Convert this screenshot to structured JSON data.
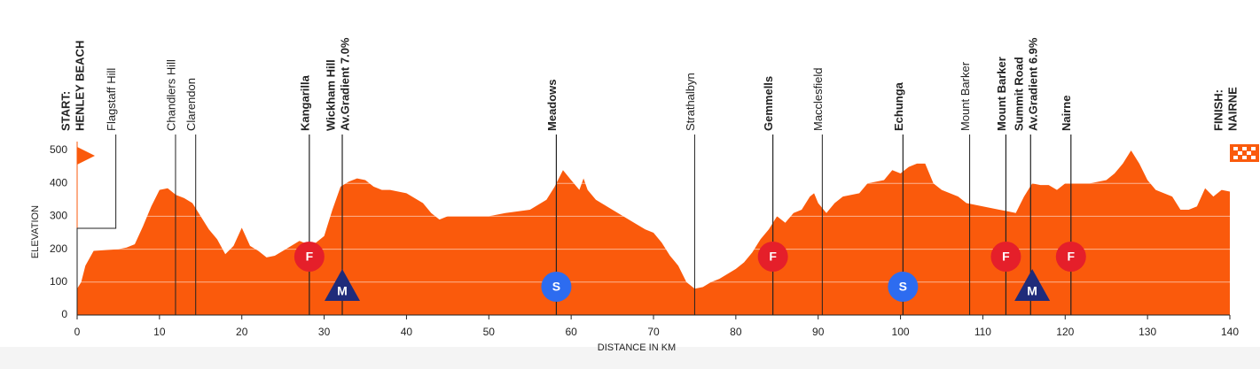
{
  "chart_data": {
    "type": "area",
    "color": "#fa5a0c",
    "ylabel": "ELEVATION",
    "xlabel": "DISTANCE IN KM",
    "xlim": [
      0,
      140
    ],
    "xticks": [
      0,
      10,
      20,
      30,
      40,
      50,
      60,
      70,
      80,
      90,
      100,
      110,
      120,
      130,
      140
    ],
    "ylim": [
      0,
      500
    ],
    "yticks": [
      0,
      100,
      200,
      300,
      400,
      500
    ],
    "grid": true,
    "x": [
      0,
      0.5,
      1,
      2,
      5,
      6,
      7,
      8,
      9,
      10,
      11,
      12,
      13,
      14,
      15,
      16,
      17,
      18,
      19,
      20,
      21,
      22,
      23,
      24,
      25,
      26,
      27,
      28,
      29,
      30,
      31,
      32,
      33,
      34,
      35,
      36,
      37,
      38,
      40,
      42,
      43,
      44,
      45,
      48,
      50,
      52,
      55,
      57,
      58,
      59,
      60,
      61,
      61.5,
      62,
      63,
      65,
      67,
      69,
      70,
      71,
      72,
      73,
      74,
      75,
      76,
      77,
      78,
      80,
      81,
      82,
      83,
      84,
      85,
      86,
      87,
      88,
      89,
      89.5,
      90,
      91,
      92,
      93,
      95,
      96,
      98,
      99,
      100,
      101,
      102,
      103,
      104,
      105,
      106,
      107,
      108,
      110,
      112,
      113,
      114,
      115,
      116,
      117,
      118,
      119,
      120,
      121,
      123,
      125,
      126,
      127,
      128,
      129,
      130,
      131,
      132,
      133,
      134,
      135,
      136,
      137,
      138,
      139,
      140
    ],
    "values": [
      80,
      100,
      150,
      195,
      200,
      205,
      215,
      270,
      330,
      380,
      385,
      365,
      355,
      340,
      300,
      260,
      230,
      185,
      210,
      265,
      210,
      195,
      175,
      180,
      195,
      210,
      225,
      215,
      220,
      240,
      320,
      390,
      405,
      415,
      410,
      390,
      380,
      380,
      370,
      340,
      310,
      290,
      300,
      300,
      300,
      310,
      320,
      350,
      390,
      440,
      410,
      380,
      415,
      380,
      350,
      320,
      290,
      260,
      250,
      220,
      180,
      150,
      100,
      80,
      85,
      100,
      110,
      140,
      160,
      190,
      230,
      260,
      300,
      280,
      310,
      320,
      360,
      370,
      340,
      310,
      340,
      360,
      370,
      400,
      410,
      440,
      430,
      450,
      460,
      460,
      400,
      380,
      370,
      360,
      340,
      330,
      320,
      315,
      310,
      360,
      400,
      395,
      395,
      380,
      400,
      400,
      400,
      410,
      430,
      460,
      500,
      460,
      410,
      380,
      370,
      360,
      320,
      320,
      330,
      385,
      360,
      380,
      375
    ],
    "locations": [
      {
        "lines": [
          "START:",
          "HENLEY BEACH"
        ],
        "x": 0,
        "bold": true,
        "caps": true
      },
      {
        "lines": [
          "Flagstaff Hill"
        ],
        "x": 4.7,
        "bold": false,
        "elbow": true
      },
      {
        "lines": [
          "Chandlers Hill"
        ],
        "x": 11.95,
        "bold": false
      },
      {
        "lines": [
          "Clarendon"
        ],
        "x": 14.4,
        "bold": false
      },
      {
        "lines": [
          "Kangarilla"
        ],
        "x": 28.2,
        "bold": true
      },
      {
        "lines": [
          "Wickham Hill",
          "Av.Gradient 7.0%"
        ],
        "x": 32.2,
        "bold": true
      },
      {
        "lines": [
          "Meadows"
        ],
        "x": 58.2,
        "bold": true
      },
      {
        "lines": [
          "Strathalbyn"
        ],
        "x": 75,
        "bold": false
      },
      {
        "lines": [
          "Gemmells"
        ],
        "x": 84.5,
        "bold": true
      },
      {
        "lines": [
          "Macclesfield"
        ],
        "x": 90.5,
        "bold": false
      },
      {
        "lines": [
          "Echunga"
        ],
        "x": 100.3,
        "bold": true
      },
      {
        "lines": [
          "Mount Barker"
        ],
        "x": 108.4,
        "bold": false
      },
      {
        "lines": [
          "Mount Barker"
        ],
        "x": 112.8,
        "bold": true
      },
      {
        "lines": [
          "Summit Road",
          "Av.Gradient 6.9%"
        ],
        "x": 115.8,
        "bold": true
      },
      {
        "lines": [
          "Nairne"
        ],
        "x": 120.7,
        "bold": true
      },
      {
        "lines": [
          "FINISH:",
          "NAIRNE"
        ],
        "x": 140,
        "bold": true,
        "caps": true
      }
    ],
    "markers": [
      {
        "label": "F",
        "x": 28.2,
        "shape": "circle",
        "color": "#e51f2a"
      },
      {
        "label": "M",
        "x": 32.2,
        "shape": "triangle",
        "color": "#1f2b7a"
      },
      {
        "label": "S",
        "x": 58.2,
        "shape": "circle",
        "color": "#2d6cf0"
      },
      {
        "label": "F",
        "x": 84.5,
        "shape": "circle",
        "color": "#e51f2a"
      },
      {
        "label": "S",
        "x": 100.3,
        "shape": "circle",
        "color": "#2d6cf0"
      },
      {
        "label": "F",
        "x": 112.8,
        "shape": "circle",
        "color": "#e51f2a"
      },
      {
        "label": "M",
        "x": 116,
        "shape": "triangle",
        "color": "#1f2b7a"
      },
      {
        "label": "F",
        "x": 120.7,
        "shape": "circle",
        "color": "#e51f2a"
      }
    ]
  }
}
